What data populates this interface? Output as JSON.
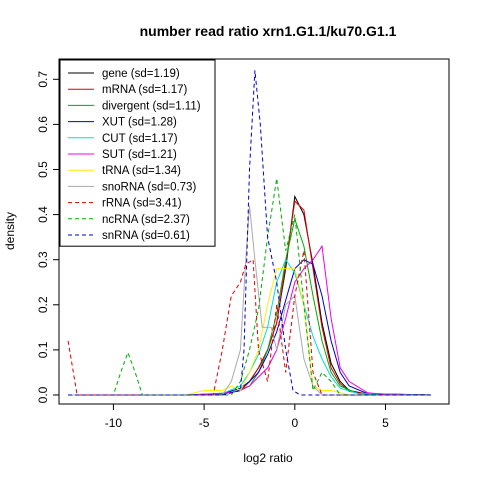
{
  "chart_data": {
    "type": "line",
    "title": "number read ratio xrn1.G1.1/ku70.G1.1",
    "xlabel": "log2 ratio",
    "ylabel": "density",
    "xlim": [
      -13,
      8.5
    ],
    "ylim": [
      -0.02,
      0.745
    ],
    "xticks": [
      -10,
      -5,
      0,
      5
    ],
    "yticks": [
      0.0,
      0.1,
      0.2,
      0.3,
      0.4,
      0.5,
      0.6,
      0.7
    ],
    "grid": false,
    "legend_position": "top-left",
    "series": [
      {
        "name": "gene (sd=1.19)",
        "color": "#000000",
        "dash": "solid",
        "points": [
          [
            -12.5,
            0
          ],
          [
            -6,
            0
          ],
          [
            -4,
            0.002
          ],
          [
            -3,
            0.01
          ],
          [
            -2.5,
            0.03
          ],
          [
            -2,
            0.06
          ],
          [
            -1.5,
            0.1
          ],
          [
            -1,
            0.16
          ],
          [
            -0.5,
            0.28
          ],
          [
            0,
            0.44
          ],
          [
            0.5,
            0.4
          ],
          [
            1,
            0.29
          ],
          [
            1.5,
            0.16
          ],
          [
            2,
            0.07
          ],
          [
            2.5,
            0.03
          ],
          [
            3,
            0.01
          ],
          [
            4,
            0.002
          ],
          [
            7.5,
            0
          ]
        ]
      },
      {
        "name": "mRNA (sd=1.17)",
        "color": "#dd0000",
        "dash": "solid",
        "points": [
          [
            -12.5,
            0
          ],
          [
            -6,
            0
          ],
          [
            -4,
            0.002
          ],
          [
            -3,
            0.01
          ],
          [
            -2.5,
            0.03
          ],
          [
            -2,
            0.06
          ],
          [
            -1.5,
            0.1
          ],
          [
            -1,
            0.16
          ],
          [
            -0.5,
            0.29
          ],
          [
            0,
            0.43
          ],
          [
            0.5,
            0.41
          ],
          [
            1,
            0.28
          ],
          [
            1.5,
            0.15
          ],
          [
            2,
            0.06
          ],
          [
            2.5,
            0.025
          ],
          [
            3,
            0.008
          ],
          [
            4,
            0.002
          ],
          [
            7.5,
            0
          ]
        ]
      },
      {
        "name": "divergent (sd=1.11)",
        "color": "#00aa00",
        "dash": "solid",
        "points": [
          [
            -12.5,
            0
          ],
          [
            -6,
            0
          ],
          [
            -3.5,
            0.005
          ],
          [
            -2.5,
            0.02
          ],
          [
            -2,
            0.05
          ],
          [
            -1.5,
            0.1
          ],
          [
            -1,
            0.18
          ],
          [
            -0.5,
            0.3
          ],
          [
            0,
            0.39
          ],
          [
            0.5,
            0.33
          ],
          [
            1,
            0.22
          ],
          [
            1.5,
            0.12
          ],
          [
            2,
            0.05
          ],
          [
            2.5,
            0.02
          ],
          [
            3.5,
            0.003
          ],
          [
            7.5,
            0
          ]
        ]
      },
      {
        "name": "XUT (sd=1.28)",
        "color": "#0000cc",
        "dash": "solid",
        "points": [
          [
            -12.5,
            0
          ],
          [
            -6,
            0
          ],
          [
            -4,
            0.003
          ],
          [
            -3,
            0.015
          ],
          [
            -2.5,
            0.03
          ],
          [
            -2,
            0.05
          ],
          [
            -1.5,
            0.09
          ],
          [
            -1,
            0.14
          ],
          [
            -0.5,
            0.21
          ],
          [
            0,
            0.28
          ],
          [
            0.5,
            0.3
          ],
          [
            1,
            0.29
          ],
          [
            1.5,
            0.22
          ],
          [
            2,
            0.12
          ],
          [
            2.5,
            0.05
          ],
          [
            3,
            0.02
          ],
          [
            4,
            0.003
          ],
          [
            7.5,
            0
          ]
        ]
      },
      {
        "name": "CUT (sd=1.17)",
        "color": "#00dddd",
        "dash": "solid",
        "points": [
          [
            -12.5,
            0
          ],
          [
            -6,
            0
          ],
          [
            -4,
            0.003
          ],
          [
            -3,
            0.02
          ],
          [
            -2.5,
            0.05
          ],
          [
            -2,
            0.09
          ],
          [
            -1.5,
            0.15
          ],
          [
            -1,
            0.25
          ],
          [
            -0.5,
            0.3
          ],
          [
            0,
            0.27
          ],
          [
            0.5,
            0.2
          ],
          [
            1,
            0.13
          ],
          [
            1.5,
            0.08
          ],
          [
            2,
            0.04
          ],
          [
            2.5,
            0.015
          ],
          [
            3.5,
            0.003
          ],
          [
            7.5,
            0
          ]
        ]
      },
      {
        "name": "SUT (sd=1.21)",
        "color": "#ee00ee",
        "dash": "solid",
        "points": [
          [
            -12.5,
            0
          ],
          [
            -6,
            0
          ],
          [
            -4,
            0.003
          ],
          [
            -3,
            0.01
          ],
          [
            -2.5,
            0.02
          ],
          [
            -2,
            0.04
          ],
          [
            -1.5,
            0.06
          ],
          [
            -1,
            0.1
          ],
          [
            -0.5,
            0.17
          ],
          [
            0,
            0.25
          ],
          [
            0.5,
            0.28
          ],
          [
            1,
            0.3
          ],
          [
            1.5,
            0.33
          ],
          [
            2,
            0.17
          ],
          [
            2.5,
            0.06
          ],
          [
            3,
            0.03
          ],
          [
            4,
            0.005
          ],
          [
            5,
            0.001
          ],
          [
            7.5,
            0
          ]
        ]
      },
      {
        "name": "tRNA (sd=1.34)",
        "color": "#ffee00",
        "dash": "solid",
        "points": [
          [
            -12.5,
            0
          ],
          [
            -6,
            0
          ],
          [
            -5.5,
            0.005
          ],
          [
            -5,
            0.01
          ],
          [
            -4,
            0.01
          ],
          [
            -3.5,
            0.02
          ],
          [
            -3,
            0.01
          ],
          [
            -2.5,
            0.05
          ],
          [
            -2,
            0.1
          ],
          [
            -1.5,
            0.2
          ],
          [
            -1,
            0.28
          ],
          [
            -0.5,
            0.28
          ],
          [
            0,
            0.28
          ],
          [
            0.5,
            0.2
          ],
          [
            1,
            0.02
          ],
          [
            1.5,
            0.01
          ],
          [
            2,
            0.01
          ],
          [
            3,
            0
          ],
          [
            7.5,
            0
          ]
        ]
      },
      {
        "name": "snoRNA (sd=0.73)",
        "color": "#aaaaaa",
        "dash": "solid",
        "points": [
          [
            -12.5,
            0
          ],
          [
            -4,
            0
          ],
          [
            -3.5,
            0.03
          ],
          [
            -3,
            0.1
          ],
          [
            -2.7,
            0.3
          ],
          [
            -2.5,
            0.42
          ],
          [
            -2.2,
            0.3
          ],
          [
            -1.8,
            0.15
          ],
          [
            -1.3,
            0.15
          ],
          [
            -1,
            0.1
          ],
          [
            -0.5,
            0.2
          ],
          [
            0,
            0.22
          ],
          [
            0.5,
            0.08
          ],
          [
            1,
            0.02
          ],
          [
            1.5,
            0
          ],
          [
            7.5,
            0
          ]
        ]
      },
      {
        "name": "rRNA (sd=3.41)",
        "color": "#dd0000",
        "dash": "dashed",
        "points": [
          [
            -12.5,
            0.12
          ],
          [
            -12,
            0
          ],
          [
            -4.5,
            0
          ],
          [
            -4,
            0.1
          ],
          [
            -3.5,
            0.22
          ],
          [
            -3,
            0.25
          ],
          [
            -2.7,
            0.29
          ],
          [
            -2.3,
            0.3
          ],
          [
            -2,
            0.1
          ],
          [
            -1.5,
            0.03
          ],
          [
            -1,
            0.2
          ],
          [
            -0.5,
            0.05
          ],
          [
            0,
            0.22
          ],
          [
            0.5,
            0.32
          ],
          [
            1,
            0.05
          ],
          [
            1.5,
            0
          ],
          [
            7.5,
            0
          ]
        ]
      },
      {
        "name": "ncRNA (sd=2.37)",
        "color": "#00aa00",
        "dash": "dashed",
        "points": [
          [
            -12.5,
            0
          ],
          [
            -10,
            0
          ],
          [
            -9.6,
            0.05
          ],
          [
            -9.2,
            0.094
          ],
          [
            -8.8,
            0.05
          ],
          [
            -8.4,
            0
          ],
          [
            -3.5,
            0
          ],
          [
            -3,
            0.03
          ],
          [
            -2.5,
            0.1
          ],
          [
            -2,
            0.19
          ],
          [
            -1.5,
            0.35
          ],
          [
            -1,
            0.48
          ],
          [
            -0.5,
            0.32
          ],
          [
            0,
            0.4
          ],
          [
            0.5,
            0.2
          ],
          [
            1,
            0.01
          ],
          [
            1.5,
            0.05
          ],
          [
            2,
            0.03
          ],
          [
            2.5,
            0
          ],
          [
            7.5,
            0
          ]
        ]
      },
      {
        "name": "snRNA (sd=0.61)",
        "color": "#0000cc",
        "dash": "dashed",
        "points": [
          [
            -12.5,
            0
          ],
          [
            -4,
            0
          ],
          [
            -3,
            0.01
          ],
          [
            -2.8,
            0.1
          ],
          [
            -2.5,
            0.5
          ],
          [
            -2.2,
            0.72
          ],
          [
            -1.9,
            0.6
          ],
          [
            -1.5,
            0.35
          ],
          [
            -1,
            0.25
          ],
          [
            -0.5,
            0.1
          ],
          [
            -0.1,
            0.01
          ],
          [
            0.3,
            0
          ],
          [
            7.5,
            0
          ]
        ]
      }
    ]
  }
}
